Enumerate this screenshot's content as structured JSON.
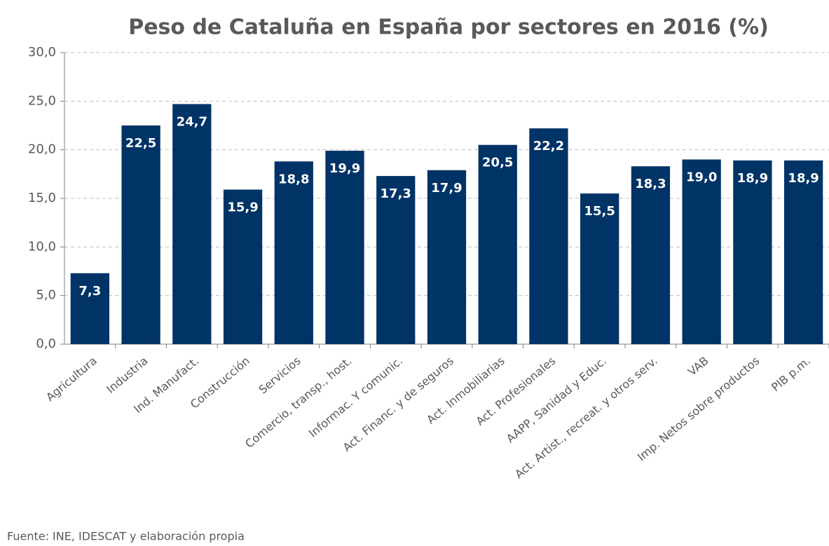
{
  "chart_data": {
    "type": "bar",
    "title": "Peso de Cataluña en España por sectores  en 2016 (%)",
    "source": "Fuente: INE, IDESCAT y elaboración propia",
    "categories": [
      "Agricultura",
      "Industria",
      "Ind. Manufact.",
      "Construcción",
      "Servicios",
      "Comercio, transp., host.",
      "Informac. Y comunic.",
      "Act. Financ. y de seguros",
      "Act. Inmobiliarias",
      "Act. Profesionales",
      "AAPP, Sanidad y Educ.",
      "Act. Artist., recreat. y otros serv.",
      "VAB",
      "Imp. Netos sobre productos",
      "PIB p.m."
    ],
    "values": [
      7.3,
      22.5,
      24.7,
      15.9,
      18.8,
      19.9,
      17.3,
      17.9,
      20.5,
      22.2,
      15.5,
      18.3,
      19.0,
      18.9,
      18.9
    ],
    "value_labels": [
      "7,3",
      "22,5",
      "24,7",
      "15,9",
      "18,8",
      "19,9",
      "17,3",
      "17,9",
      "20,5",
      "22,2",
      "15,5",
      "18,3",
      "19,0",
      "18,9",
      "18,9"
    ],
    "color": "#003366",
    "ylim": [
      0,
      30
    ],
    "yticks": [
      {
        "value": 0,
        "label": "0,0"
      },
      {
        "value": 5,
        "label": "5,0"
      },
      {
        "value": 10,
        "label": "10,0"
      },
      {
        "value": 15,
        "label": "15,0"
      },
      {
        "value": 20,
        "label": "20,0"
      },
      {
        "value": 25,
        "label": "25,0"
      },
      {
        "value": 30,
        "label": "30,0"
      }
    ],
    "grid": true
  }
}
